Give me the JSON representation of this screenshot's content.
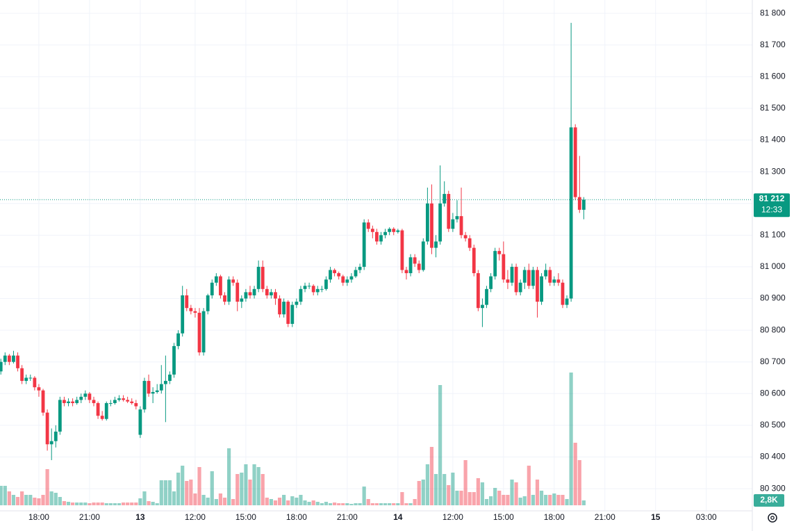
{
  "chart_data": {
    "type": "candlestick",
    "open": [
      80670,
      80700,
      80720,
      80700,
      80720,
      80680,
      80640,
      80650,
      80650,
      80620,
      80610,
      80540,
      80440,
      80450,
      80480,
      80580,
      80570,
      80575,
      80570,
      80580,
      80590,
      80600,
      80580,
      80570,
      80530,
      80520,
      80570,
      80570,
      80580,
      80585,
      80580,
      80575,
      80570,
      80470,
      80550,
      80640,
      80600,
      80605,
      80610,
      80630,
      80640,
      80660,
      80750,
      80790,
      80910,
      80870,
      80860,
      80855,
      80730,
      80860,
      80910,
      80950,
      80970,
      80910,
      80890,
      80960,
      80950,
      80890,
      80900,
      80920,
      80910,
      80930,
      81000,
      80930,
      80910,
      80920,
      80900,
      80850,
      80890,
      80820,
      80880,
      80890,
      80930,
      80940,
      80940,
      80920,
      80930,
      80930,
      80960,
      80990,
      80980,
      80970,
      80950,
      80960,
      80970,
      80990,
      81000,
      81140,
      81120,
      81110,
      81080,
      81100,
      81110,
      81120,
      81110,
      81115,
      80990,
      80980,
      81030,
      81010,
      80990,
      81080,
      81200,
      81060,
      81080,
      81200,
      81230,
      81120,
      81150,
      81160,
      81100,
      81090,
      81060,
      80980,
      80870,
      80880,
      80930,
      80970,
      81050,
      81040,
      80960,
      80950,
      81000,
      80920,
      80950,
      80990,
      80940,
      80990,
      80890,
      80970,
      80990,
      80950,
      80960,
      80950,
      80880,
      80900,
      81440,
      81220,
      81180
    ],
    "high": [
      80710,
      80730,
      80725,
      80735,
      80730,
      80690,
      80660,
      80660,
      80655,
      80630,
      80615,
      80550,
      80490,
      80500,
      80590,
      80590,
      80585,
      80585,
      80590,
      80600,
      80610,
      80605,
      80590,
      80575,
      80545,
      80575,
      80580,
      80590,
      80595,
      80595,
      80590,
      80585,
      80580,
      80560,
      80650,
      80660,
      80620,
      80630,
      80690,
      80720,
      80670,
      80760,
      80800,
      80940,
      80930,
      80880,
      80870,
      80870,
      80870,
      80915,
      80960,
      80980,
      80975,
      80920,
      80970,
      80970,
      80960,
      80910,
      80930,
      80940,
      80940,
      81020,
      81020,
      80940,
      80930,
      80930,
      80910,
      80900,
      80895,
      80890,
      80900,
      80940,
      80950,
      80950,
      80945,
      80940,
      80940,
      80970,
      81000,
      80995,
      80985,
      80975,
      80970,
      80980,
      81000,
      81010,
      81150,
      81150,
      81130,
      81120,
      81110,
      81120,
      81125,
      81125,
      81120,
      81120,
      81000,
      81040,
      81040,
      81020,
      81090,
      81250,
      81260,
      81100,
      81320,
      81270,
      81240,
      81170,
      81210,
      81250,
      81110,
      81100,
      81070,
      80990,
      80900,
      80940,
      80980,
      81060,
      81060,
      81080,
      80990,
      81010,
      81010,
      80960,
      81000,
      81010,
      81000,
      81000,
      80980,
      81010,
      81000,
      80970,
      80980,
      80960,
      80910,
      81770,
      81450,
      81350,
      81220
    ],
    "low": [
      80660,
      80690,
      80690,
      80695,
      80670,
      80630,
      80630,
      80640,
      80610,
      80590,
      80530,
      80420,
      80390,
      80430,
      80470,
      80560,
      80560,
      80560,
      80565,
      80570,
      80580,
      80570,
      80560,
      80520,
      80515,
      80515,
      80560,
      80565,
      80575,
      80575,
      80570,
      80565,
      80550,
      80460,
      80540,
      80590,
      80570,
      80600,
      80600,
      80510,
      80630,
      80650,
      80740,
      80780,
      80860,
      80850,
      80840,
      80720,
      80720,
      80850,
      80900,
      80940,
      80900,
      80880,
      80880,
      80940,
      80860,
      80870,
      80890,
      80900,
      80900,
      80920,
      80920,
      80900,
      80900,
      80880,
      80840,
      80840,
      80810,
      80810,
      80870,
      80880,
      80920,
      80930,
      80910,
      80910,
      80920,
      80925,
      80950,
      80970,
      80960,
      80940,
      80940,
      80950,
      80965,
      80980,
      80990,
      81110,
      81090,
      81070,
      81070,
      81090,
      81100,
      81100,
      81105,
      80980,
      80960,
      80970,
      81000,
      80980,
      80985,
      81070,
      81040,
      81030,
      81070,
      81190,
      81110,
      81110,
      81140,
      81090,
      81080,
      81050,
      80970,
      80860,
      80810,
      80870,
      80920,
      80960,
      81020,
      80950,
      80930,
      80940,
      80910,
      80910,
      80930,
      80930,
      80930,
      80840,
      80880,
      80960,
      80940,
      80940,
      80940,
      80870,
      80870,
      80890,
      81210,
      81170,
      81150
    ],
    "close": [
      80700,
      80720,
      80700,
      80720,
      80680,
      80640,
      80650,
      80650,
      80620,
      80610,
      80540,
      80440,
      80450,
      80480,
      80580,
      80570,
      80575,
      80570,
      80580,
      80590,
      80600,
      80580,
      80570,
      80530,
      80520,
      80570,
      80570,
      80580,
      80585,
      80580,
      80575,
      80570,
      80560,
      80550,
      80640,
      80600,
      80605,
      80610,
      80630,
      80640,
      80660,
      80750,
      80790,
      80910,
      80870,
      80860,
      80855,
      80730,
      80860,
      80910,
      80950,
      80970,
      80910,
      80890,
      80960,
      80950,
      80890,
      80900,
      80920,
      80910,
      80930,
      81000,
      80930,
      80910,
      80920,
      80900,
      80850,
      80890,
      80820,
      80880,
      80890,
      80930,
      80940,
      80940,
      80920,
      80930,
      80930,
      80960,
      80990,
      80980,
      80970,
      80950,
      80960,
      80970,
      80990,
      81000,
      81140,
      81120,
      81110,
      81080,
      81100,
      81110,
      81120,
      81110,
      81115,
      80990,
      80980,
      81030,
      81010,
      80990,
      81080,
      81200,
      81060,
      81080,
      81200,
      81230,
      81120,
      81150,
      81160,
      81100,
      81090,
      81060,
      80980,
      80870,
      80880,
      80930,
      80970,
      81050,
      81040,
      80960,
      80950,
      81000,
      80920,
      80950,
      80990,
      80940,
      80990,
      80890,
      80970,
      80990,
      80950,
      80960,
      80950,
      80880,
      80900,
      81440,
      81220,
      81180,
      81212
    ],
    "volume": [
      11200,
      11200,
      8000,
      6000,
      4800,
      8000,
      6000,
      6000,
      4400,
      4000,
      6000,
      20800,
      8000,
      7200,
      4800,
      2400,
      2000,
      1600,
      1600,
      1600,
      1600,
      1200,
      1600,
      1600,
      1600,
      1200,
      1200,
      1200,
      1200,
      1600,
      1600,
      1600,
      1600,
      4000,
      8000,
      2400,
      2000,
      1200,
      14400,
      14400,
      14400,
      8000,
      18800,
      22800,
      14000,
      14800,
      6800,
      22000,
      6000,
      4400,
      19600,
      3600,
      6800,
      4400,
      32800,
      3600,
      18000,
      18800,
      23600,
      14800,
      23600,
      22000,
      18000,
      4400,
      3600,
      2800,
      4400,
      6000,
      2800,
      5200,
      4400,
      6000,
      2800,
      2000,
      2800,
      2000,
      1200,
      2000,
      1200,
      1600,
      1200,
      1200,
      1200,
      800,
      1200,
      1200,
      10800,
      3600,
      1200,
      1200,
      1200,
      1200,
      1200,
      1200,
      1200,
      7600,
      1200,
      1200,
      3600,
      14000,
      14800,
      23600,
      33600,
      18000,
      69200,
      18000,
      11600,
      18800,
      8400,
      8400,
      26000,
      7600,
      7600,
      15600,
      13200,
      3600,
      5200,
      10000,
      8400,
      6000,
      6000,
      14800,
      13200,
      4400,
      5200,
      22800,
      6000,
      14800,
      8400,
      6000,
      6000,
      6800,
      6000,
      6000,
      3600,
      76400,
      36000,
      26000,
      2800
    ],
    "up_color": "#089981",
    "down_color": "#f23645",
    "xlim": [
      -0.2,
      177.9
    ],
    "xticks": [
      {
        "value": 9,
        "label": "18:00"
      },
      {
        "value": 21,
        "label": "21:00"
      },
      {
        "value": 33,
        "label": "13"
      },
      {
        "value": 46,
        "label": "12:00"
      },
      {
        "value": 58,
        "label": "15:00"
      },
      {
        "value": 70,
        "label": "18:00"
      },
      {
        "value": 82,
        "label": "21:00"
      },
      {
        "value": 94,
        "label": "14"
      },
      {
        "value": 107,
        "label": "12:00"
      },
      {
        "value": 119,
        "label": "15:00"
      },
      {
        "value": 131,
        "label": "18:00"
      },
      {
        "value": 143,
        "label": "21:00"
      },
      {
        "value": 155,
        "label": "15"
      },
      {
        "value": 167,
        "label": "03:00"
      }
    ],
    "ylim": [
      80230,
      81842
    ],
    "yticks": [
      {
        "value": 80300,
        "label": "80 300"
      },
      {
        "value": 80400,
        "label": "80 400"
      },
      {
        "value": 80500,
        "label": "80 500"
      },
      {
        "value": 80600,
        "label": "80 600"
      },
      {
        "value": 80700,
        "label": "80 700"
      },
      {
        "value": 80800,
        "label": "80 800"
      },
      {
        "value": 80900,
        "label": "80 900"
      },
      {
        "value": 81000,
        "label": "81 000"
      },
      {
        "value": 81100,
        "label": "81 100"
      },
      {
        "value": 81200,
        "label": "81 200"
      },
      {
        "value": 81300,
        "label": "81 300"
      },
      {
        "value": 81400,
        "label": "81 400"
      },
      {
        "value": 81500,
        "label": "81 500"
      },
      {
        "value": 81600,
        "label": "81 600"
      },
      {
        "value": 81700,
        "label": "81 700"
      },
      {
        "value": 81800,
        "label": "81 800"
      }
    ],
    "y2lim": [
      0,
      120000
    ],
    "last_price": {
      "value": 81212,
      "label": "81 212"
    },
    "countdown": "12:33",
    "last_volume": {
      "value": 2800,
      "label": "2,8K"
    },
    "grid": true
  }
}
